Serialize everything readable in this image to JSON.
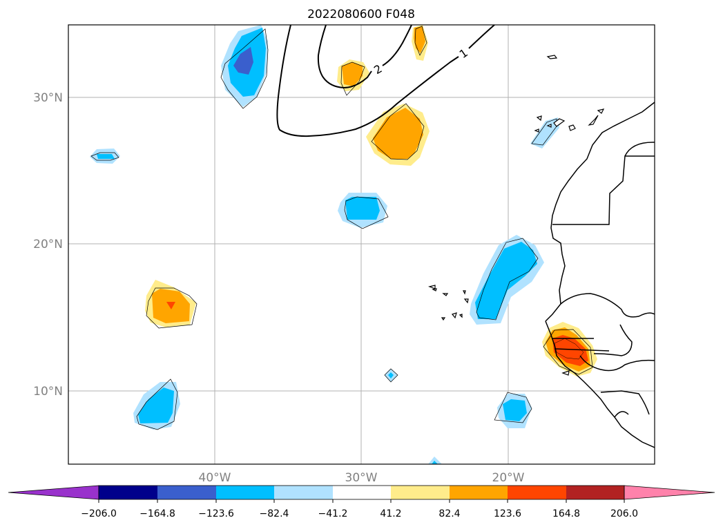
{
  "title": "2022080600 F048",
  "map": {
    "lon_range": [
      -50,
      -10
    ],
    "lat_range": [
      5,
      35
    ],
    "gridlines": true,
    "lon_ticks": [
      {
        "value": -40,
        "label": "40°W"
      },
      {
        "value": -30,
        "label": "30°W"
      },
      {
        "value": -20,
        "label": "20°W"
      }
    ],
    "lat_ticks": [
      {
        "value": 30,
        "label": "30°N"
      },
      {
        "value": 20,
        "label": "20°N"
      },
      {
        "value": 10,
        "label": "10°N"
      }
    ],
    "contour_labels": [
      {
        "text": "2",
        "lon": -29.2,
        "lat": 32.0
      },
      {
        "text": "1",
        "lon": -22.0,
        "lat": 33.1
      }
    ]
  },
  "colorbar": {
    "colors": [
      "#9932cc",
      "#00008b",
      "#3a5fcd",
      "#00bfff",
      "#b0e2ff",
      "#ffffff",
      "#ffec8b",
      "#ffa500",
      "#ff4500",
      "#b22222",
      "#ff82ab"
    ],
    "tick_labels": [
      "−206.0",
      "−164.8",
      "−123.6",
      "−82.4",
      "−41.2",
      "41.2",
      "82.4",
      "123.6",
      "164.8",
      "206.0"
    ],
    "extend": "both"
  }
}
